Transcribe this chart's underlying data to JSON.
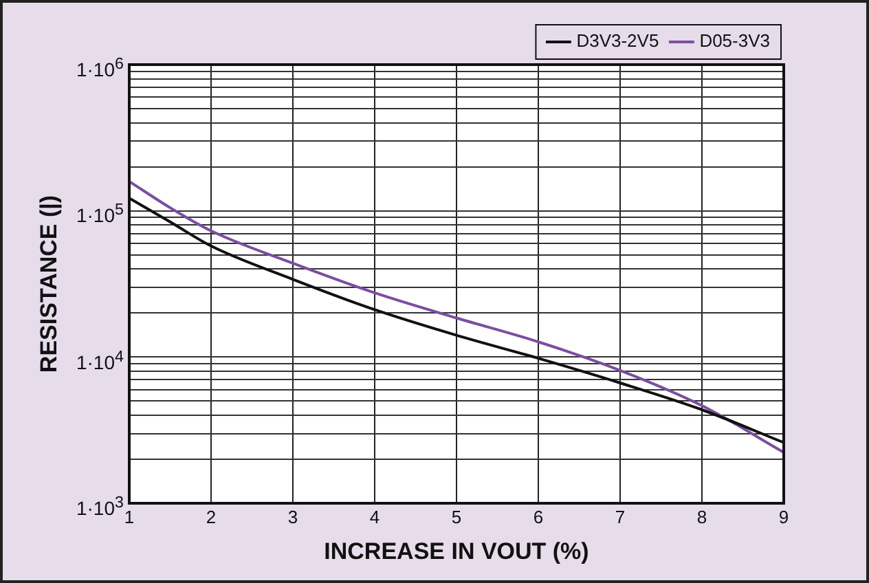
{
  "chart_data": {
    "type": "line",
    "xlabel": "INCREASE IN VOUT (%)",
    "ylabel": "RESISTANCE (|)",
    "log": "y",
    "grid": true,
    "legend": "top right",
    "marker": "none",
    "line_style": "solid",
    "x": [
      1,
      1.5,
      2,
      3,
      4,
      5,
      6,
      7,
      8,
      9
    ],
    "xlim": [
      1,
      9
    ],
    "xticks": [
      1,
      2,
      3,
      4,
      5,
      6,
      7,
      8,
      9
    ],
    "ylim": [
      1000,
      1000000
    ],
    "yticks": [
      {
        "value": 1000,
        "label": "1·10$^{3}$"
      },
      {
        "value": 2000,
        "label": null
      },
      {
        "value": 3000,
        "label": null
      },
      {
        "value": 4000,
        "label": null
      },
      {
        "value": 5000,
        "label": null
      },
      {
        "value": 6000,
        "label": null
      },
      {
        "value": 7000,
        "label": null
      },
      {
        "value": 8000,
        "label": null
      },
      {
        "value": 9000,
        "label": null
      },
      {
        "value": 10000,
        "label": "1·10$^{4}$"
      },
      {
        "value": 20000,
        "label": null
      },
      {
        "value": 30000,
        "label": null
      },
      {
        "value": 40000,
        "label": null
      },
      {
        "value": 50000,
        "label": null
      },
      {
        "value": 60000,
        "label": null
      },
      {
        "value": 70000,
        "label": null
      },
      {
        "value": 80000,
        "label": null
      },
      {
        "value": 90000,
        "label": null
      },
      {
        "value": 100000,
        "label": "1·10$^{5}$"
      },
      {
        "value": 200000,
        "label": null
      },
      {
        "value": 300000,
        "label": null
      },
      {
        "value": 400000,
        "label": null
      },
      {
        "value": 500000,
        "label": null
      },
      {
        "value": 600000,
        "label": null
      },
      {
        "value": 700000,
        "label": null
      },
      {
        "value": 800000,
        "label": null
      },
      {
        "value": 900000,
        "label": null
      },
      {
        "value": 1000000,
        "label": "1·10$^{6}$"
      }
    ],
    "series": [
      {
        "name": "D3V3-2V5",
        "color": "#111111",
        "values": [
          122000,
          84000,
          57500,
          34000,
          21100,
          14100,
          9800,
          6650,
          4360,
          2600
        ]
      },
      {
        "name": "D05-3V3",
        "color": "#7b4fa0",
        "values": [
          159000,
          105000,
          73000,
          43800,
          27500,
          18500,
          12700,
          8100,
          4650,
          2230
        ]
      }
    ]
  }
}
